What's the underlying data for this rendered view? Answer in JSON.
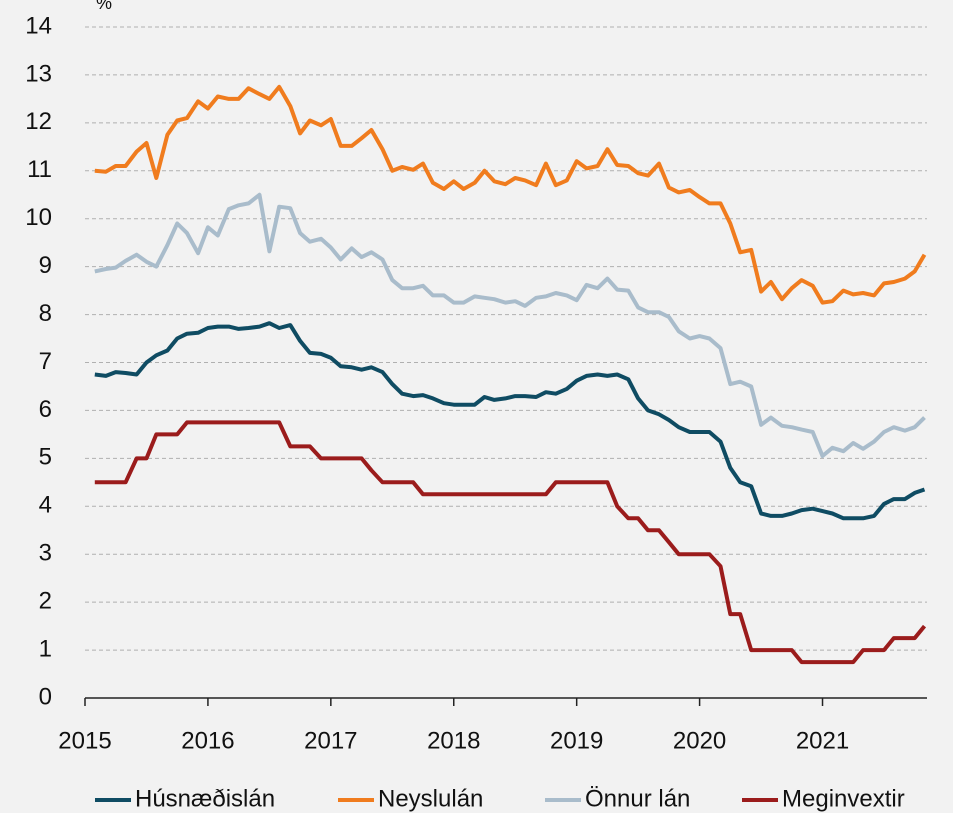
{
  "chart_data": {
    "type": "line",
    "y_label": "%",
    "x": [
      2015.08,
      2015.17,
      2015.25,
      2015.33,
      2015.42,
      2015.5,
      2015.58,
      2015.67,
      2015.75,
      2015.83,
      2015.92,
      2016,
      2016.08,
      2016.17,
      2016.25,
      2016.33,
      2016.42,
      2016.5,
      2016.58,
      2016.67,
      2016.75,
      2016.83,
      2016.92,
      2017,
      2017.08,
      2017.17,
      2017.25,
      2017.33,
      2017.42,
      2017.5,
      2017.58,
      2017.67,
      2017.75,
      2017.83,
      2017.92,
      2018,
      2018.08,
      2018.17,
      2018.25,
      2018.33,
      2018.42,
      2018.5,
      2018.58,
      2018.67,
      2018.75,
      2018.83,
      2018.92,
      2019,
      2019.08,
      2019.17,
      2019.25,
      2019.33,
      2019.42,
      2019.5,
      2019.58,
      2019.67,
      2019.75,
      2019.83,
      2019.92,
      2020,
      2020.08,
      2020.17,
      2020.25,
      2020.33,
      2020.42,
      2020.5,
      2020.58,
      2020.67,
      2020.75,
      2020.83,
      2020.92,
      2021,
      2021.08,
      2021.17,
      2021.25,
      2021.33,
      2021.42,
      2021.5,
      2021.58,
      2021.67,
      2021.75,
      2021.83
    ],
    "series": [
      {
        "name": "Húsnæðislán",
        "color": "#0f4c63",
        "values": [
          6.75,
          6.72,
          6.8,
          6.78,
          6.75,
          7.0,
          7.15,
          7.25,
          7.5,
          7.6,
          7.62,
          7.72,
          7.75,
          7.75,
          7.7,
          7.72,
          7.75,
          7.82,
          7.72,
          7.78,
          7.45,
          7.2,
          7.18,
          7.1,
          6.92,
          6.9,
          6.85,
          6.9,
          6.8,
          6.55,
          6.35,
          6.3,
          6.32,
          6.25,
          6.15,
          6.12,
          6.12,
          6.12,
          6.28,
          6.22,
          6.25,
          6.3,
          6.3,
          6.28,
          6.38,
          6.35,
          6.45,
          6.62,
          6.72,
          6.75,
          6.72,
          6.75,
          6.65,
          6.25,
          6.0,
          5.92,
          5.8,
          5.65,
          5.55,
          5.55,
          5.55,
          5.35,
          4.8,
          4.5,
          4.42,
          3.85,
          3.8,
          3.8,
          3.85,
          3.92,
          3.95,
          3.9,
          3.85,
          3.75,
          3.75,
          3.75,
          3.8,
          4.05,
          4.15,
          4.15,
          4.28,
          4.35
        ]
      },
      {
        "name": "Neyslulán",
        "color": "#f07c1e",
        "values": [
          11.0,
          10.98,
          11.1,
          11.1,
          11.4,
          11.58,
          10.85,
          11.75,
          12.05,
          12.1,
          12.45,
          12.3,
          12.55,
          12.5,
          12.5,
          12.72,
          12.6,
          12.5,
          12.75,
          12.35,
          11.78,
          12.05,
          11.95,
          12.08,
          11.52,
          11.52,
          11.68,
          11.85,
          11.45,
          11.0,
          11.08,
          11.02,
          11.15,
          10.75,
          10.62,
          10.78,
          10.62,
          10.75,
          11.0,
          10.78,
          10.72,
          10.85,
          10.8,
          10.7,
          11.15,
          10.7,
          10.8,
          11.2,
          11.05,
          11.1,
          11.45,
          11.12,
          11.1,
          10.95,
          10.9,
          11.15,
          10.65,
          10.55,
          10.6,
          10.45,
          10.32,
          10.32,
          9.9,
          9.3,
          9.35,
          8.48,
          8.68,
          8.32,
          8.55,
          8.72,
          8.6,
          8.25,
          8.28,
          8.5,
          8.42,
          8.45,
          8.4,
          8.65,
          8.68,
          8.75,
          8.9,
          9.25
        ]
      },
      {
        "name": "Önnur lán",
        "color": "#a9bccb",
        "values": [
          8.9,
          8.95,
          8.98,
          9.12,
          9.25,
          9.1,
          9.0,
          9.45,
          9.9,
          9.7,
          9.28,
          9.82,
          9.65,
          10.2,
          10.28,
          10.32,
          10.5,
          9.32,
          10.25,
          10.22,
          9.7,
          9.52,
          9.58,
          9.4,
          9.15,
          9.38,
          9.2,
          9.3,
          9.15,
          8.72,
          8.55,
          8.55,
          8.6,
          8.4,
          8.4,
          8.25,
          8.25,
          8.38,
          8.35,
          8.32,
          8.25,
          8.28,
          8.18,
          8.35,
          8.38,
          8.45,
          8.4,
          8.3,
          8.62,
          8.55,
          8.75,
          8.52,
          8.5,
          8.15,
          8.05,
          8.05,
          7.95,
          7.65,
          7.5,
          7.55,
          7.5,
          7.3,
          6.55,
          6.6,
          6.5,
          5.7,
          5.85,
          5.68,
          5.65,
          5.6,
          5.55,
          5.05,
          5.22,
          5.15,
          5.32,
          5.2,
          5.35,
          5.55,
          5.65,
          5.58,
          5.65,
          5.85
        ]
      },
      {
        "name": "Meginvextir",
        "color": "#9b1c1c",
        "values": [
          4.5,
          4.5,
          4.5,
          4.5,
          5.0,
          5.0,
          5.5,
          5.5,
          5.5,
          5.75,
          5.75,
          5.75,
          5.75,
          5.75,
          5.75,
          5.75,
          5.75,
          5.75,
          5.75,
          5.25,
          5.25,
          5.25,
          5.0,
          5.0,
          5.0,
          5.0,
          5.0,
          4.75,
          4.5,
          4.5,
          4.5,
          4.5,
          4.25,
          4.25,
          4.25,
          4.25,
          4.25,
          4.25,
          4.25,
          4.25,
          4.25,
          4.25,
          4.25,
          4.25,
          4.25,
          4.5,
          4.5,
          4.5,
          4.5,
          4.5,
          4.5,
          4.0,
          3.75,
          3.75,
          3.5,
          3.5,
          3.25,
          3.0,
          3.0,
          3.0,
          3.0,
          2.75,
          1.75,
          1.75,
          1.0,
          1.0,
          1.0,
          1.0,
          1.0,
          0.75,
          0.75,
          0.75,
          0.75,
          0.75,
          0.75,
          1.0,
          1.0,
          1.0,
          1.25,
          1.25,
          1.25,
          1.5
        ]
      }
    ],
    "xlim": [
      2015,
      2021.85
    ],
    "xticks": [
      2015,
      2016,
      2017,
      2018,
      2019,
      2020,
      2021
    ],
    "ylim": [
      0,
      14
    ],
    "yticks": [
      0,
      1,
      2,
      3,
      4,
      5,
      6,
      7,
      8,
      9,
      10,
      11,
      12,
      13,
      14
    ],
    "grid": true,
    "legend": "bottom"
  }
}
